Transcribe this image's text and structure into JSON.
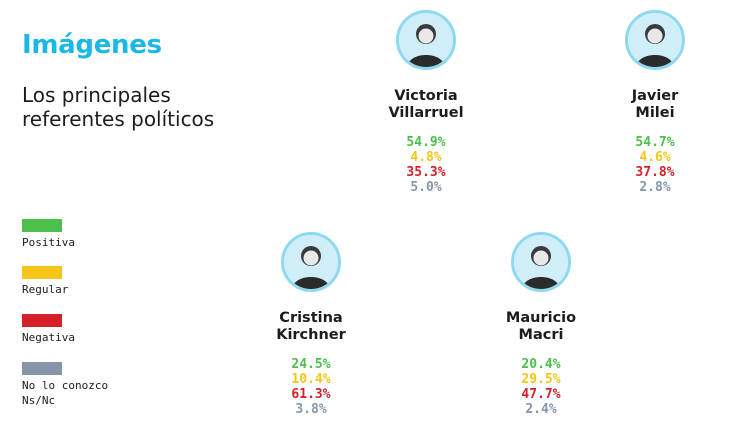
{
  "title": "Imágenes",
  "subtitle": "Los principales referentes políticos",
  "colors": {
    "title": "#19b8e6",
    "positiva": "#4cc04a",
    "regular": "#f5c518",
    "negativa": "#d42027",
    "no_lo_conozco": "#8496a8",
    "avatar_ring": "#8fd9f0"
  },
  "legend": [
    {
      "label": "Positiva",
      "color": "#4cc04a"
    },
    {
      "label": "Regular",
      "color": "#f5c518"
    },
    {
      "label": "Negativa",
      "color": "#d42027"
    },
    {
      "label": "No lo conozco\nNs/Nc",
      "color": "#8496a8"
    }
  ],
  "chart_data": {
    "type": "table",
    "title": "Imágenes",
    "subtitle": "Los principales referentes políticos",
    "categories": [
      "Positiva",
      "Regular",
      "Negativa",
      "No lo conozco Ns/Nc"
    ],
    "series": [
      {
        "name": "Victoria Villarruel",
        "values": [
          "54.9%",
          "4.8%",
          "35.3%",
          "5.0%"
        ]
      },
      {
        "name": "Javier Milei",
        "values": [
          "54.7%",
          "4.6%",
          "37.8%",
          "2.8%"
        ]
      },
      {
        "name": "Cristina Kirchner",
        "values": [
          "24.5%",
          "10.4%",
          "61.3%",
          "3.8%"
        ]
      },
      {
        "name": "Mauricio Macri",
        "values": [
          "20.4%",
          "29.5%",
          "47.7%",
          "2.4%"
        ]
      }
    ]
  },
  "people": [
    {
      "first": "Victoria",
      "last": "Villarruel",
      "photo": "portrait-photo"
    },
    {
      "first": "Javier",
      "last": "Milei",
      "photo": "portrait-photo"
    },
    {
      "first": "Cristina",
      "last": "Kirchner",
      "photo": "portrait-photo"
    },
    {
      "first": "Mauricio",
      "last": "Macri",
      "photo": "portrait-photo"
    }
  ]
}
